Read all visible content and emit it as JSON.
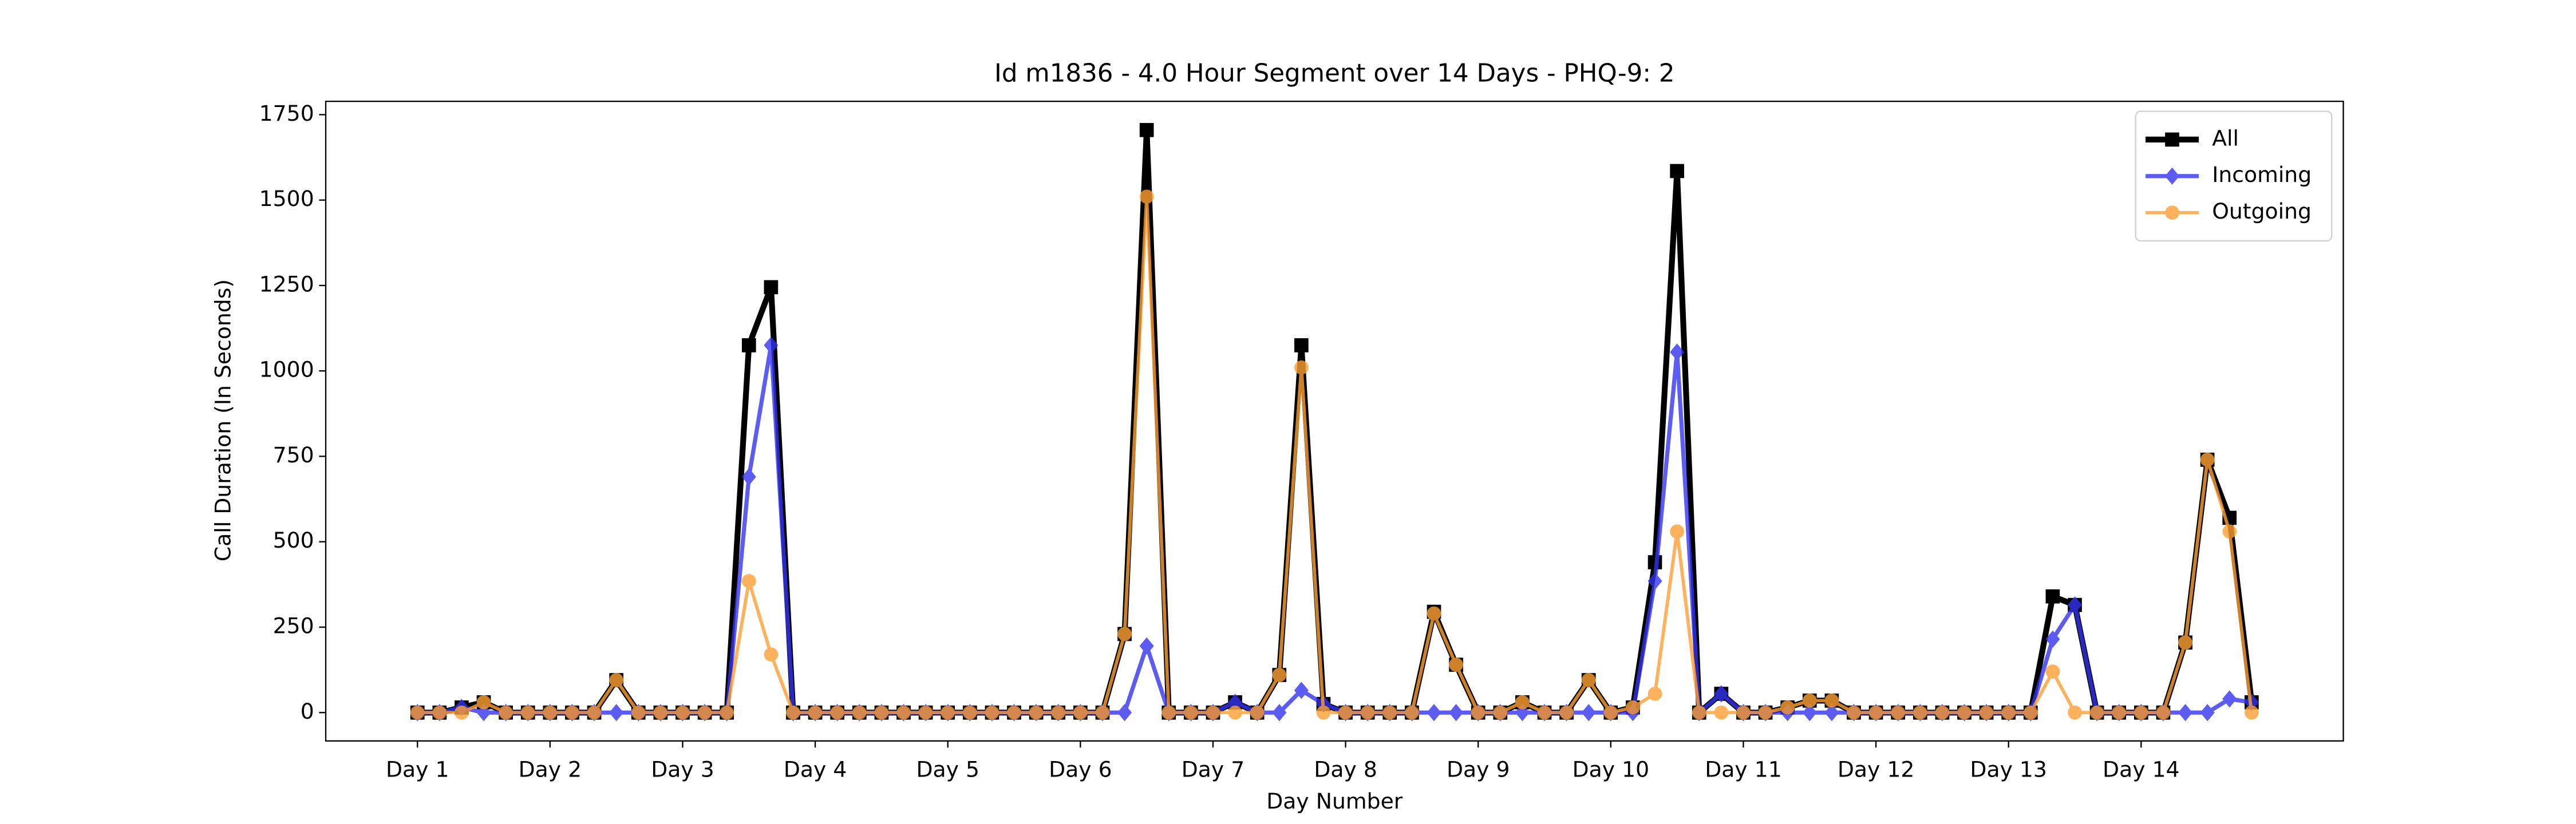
{
  "chart_data": {
    "type": "line",
    "title": "Id m1836 - 4.0 Hour Segment over 14 Days - PHQ-9: 2",
    "xlabel": "Day Number",
    "ylabel": "Call Duration (In Seconds)",
    "categories": [
      "Day 1",
      null,
      null,
      null,
      null,
      null,
      "Day 2",
      null,
      null,
      null,
      null,
      null,
      "Day 3",
      null,
      null,
      null,
      null,
      null,
      "Day 4",
      null,
      null,
      null,
      null,
      null,
      "Day 5",
      null,
      null,
      null,
      null,
      null,
      "Day 6",
      null,
      null,
      null,
      null,
      null,
      "Day 7",
      null,
      null,
      null,
      null,
      null,
      "Day 8",
      null,
      null,
      null,
      null,
      null,
      "Day 9",
      null,
      null,
      null,
      null,
      null,
      "Day 10",
      null,
      null,
      null,
      null,
      null,
      "Day 11",
      null,
      null,
      null,
      null,
      null,
      "Day 12",
      null,
      null,
      null,
      null,
      null,
      "Day 13",
      null,
      null,
      null,
      null,
      null,
      "Day 14",
      null,
      null,
      null,
      null,
      null
    ],
    "series": [
      {
        "name": "All",
        "color": "#000000",
        "marker": "square",
        "values": [
          0,
          0,
          15,
          30,
          0,
          0,
          0,
          0,
          0,
          95,
          0,
          0,
          0,
          0,
          0,
          1075,
          1245,
          0,
          0,
          0,
          0,
          0,
          0,
          0,
          0,
          0,
          0,
          0,
          0,
          0,
          0,
          0,
          230,
          1705,
          0,
          0,
          0,
          30,
          0,
          110,
          1075,
          25,
          0,
          0,
          0,
          0,
          295,
          140,
          0,
          0,
          30,
          0,
          0,
          95,
          0,
          15,
          440,
          1585,
          0,
          55,
          0,
          0,
          15,
          35,
          35,
          0,
          0,
          0,
          0,
          0,
          0,
          0,
          0,
          0,
          340,
          315,
          0,
          0,
          0,
          0,
          205,
          740,
          570,
          30
        ]
      },
      {
        "name": "Incoming",
        "color": "#3434f2",
        "marker": "diamond",
        "values": [
          0,
          0,
          15,
          0,
          0,
          0,
          0,
          0,
          0,
          0,
          0,
          0,
          0,
          0,
          0,
          690,
          1075,
          0,
          0,
          0,
          0,
          0,
          0,
          0,
          0,
          0,
          0,
          0,
          0,
          0,
          0,
          0,
          0,
          195,
          0,
          0,
          0,
          30,
          0,
          0,
          65,
          25,
          0,
          0,
          0,
          0,
          0,
          0,
          0,
          0,
          0,
          0,
          0,
          0,
          0,
          0,
          385,
          1055,
          0,
          55,
          0,
          0,
          0,
          0,
          0,
          0,
          0,
          0,
          0,
          0,
          0,
          0,
          0,
          0,
          215,
          315,
          0,
          0,
          0,
          0,
          0,
          0,
          40,
          30
        ]
      },
      {
        "name": "Outgoing",
        "color": "#ffa033",
        "marker": "circle",
        "values": [
          0,
          0,
          0,
          30,
          0,
          0,
          0,
          0,
          0,
          95,
          0,
          0,
          0,
          0,
          0,
          385,
          170,
          0,
          0,
          0,
          0,
          0,
          0,
          0,
          0,
          0,
          0,
          0,
          0,
          0,
          0,
          0,
          230,
          1510,
          0,
          0,
          0,
          0,
          0,
          110,
          1010,
          0,
          0,
          0,
          0,
          0,
          290,
          140,
          0,
          0,
          30,
          0,
          0,
          95,
          0,
          15,
          55,
          530,
          0,
          0,
          0,
          0,
          15,
          35,
          35,
          0,
          0,
          0,
          0,
          0,
          0,
          0,
          0,
          0,
          120,
          0,
          0,
          0,
          0,
          0,
          205,
          740,
          530,
          0
        ]
      }
    ],
    "ylim": [
      -83,
      1789
    ],
    "yticks": [
      0,
      250,
      500,
      750,
      1000,
      1250,
      1500,
      1750
    ],
    "xlim": [
      -4.15,
      87.15
    ],
    "grid": false,
    "legend": "upper right"
  }
}
